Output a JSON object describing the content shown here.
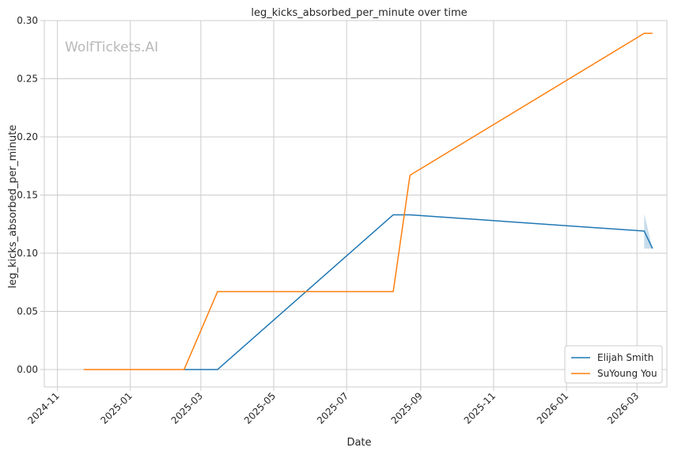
{
  "chart_data": {
    "type": "line",
    "title": "leg_kicks_absorbed_per_minute over time",
    "xlabel": "Date",
    "ylabel": "leg_kicks_absorbed_per_minute",
    "watermark": "WolfTickets.AI",
    "x_axis_type": "date",
    "xlim": [
      "2024-10-21",
      "2026-03-26"
    ],
    "ylim": [
      -0.015,
      0.3
    ],
    "x_ticks": [
      "2024-11",
      "2025-01",
      "2025-03",
      "2025-05",
      "2025-07",
      "2025-09",
      "2025-11",
      "2026-01",
      "2026-03"
    ],
    "y_ticks": [
      "0.00",
      "0.05",
      "0.10",
      "0.15",
      "0.20",
      "0.25",
      "0.30"
    ],
    "grid": true,
    "legend_position": "bottom-right",
    "series": [
      {
        "name": "Elijah Smith",
        "color": "#1f77b4",
        "points": [
          {
            "x": "2025-02-15",
            "y": 0.0
          },
          {
            "x": "2025-03-15",
            "y": 0.0
          },
          {
            "x": "2025-08-09",
            "y": 0.133
          },
          {
            "x": "2025-08-23",
            "y": 0.133
          },
          {
            "x": "2026-03-07",
            "y": 0.119
          },
          {
            "x": "2026-03-14",
            "y": 0.104
          }
        ],
        "confidence_band": [
          {
            "x": "2026-03-07",
            "low": 0.104,
            "high": 0.134
          },
          {
            "x": "2026-03-14",
            "low": 0.104,
            "high": 0.104
          }
        ]
      },
      {
        "name": "SuYoung You",
        "color": "#ff7f0e",
        "points": [
          {
            "x": "2024-11-23",
            "y": 0.0
          },
          {
            "x": "2025-02-15",
            "y": 0.0
          },
          {
            "x": "2025-03-15",
            "y": 0.067
          },
          {
            "x": "2025-08-09",
            "y": 0.067
          },
          {
            "x": "2025-08-23",
            "y": 0.167
          },
          {
            "x": "2026-03-07",
            "y": 0.289
          },
          {
            "x": "2026-03-14",
            "y": 0.289
          }
        ]
      }
    ]
  }
}
